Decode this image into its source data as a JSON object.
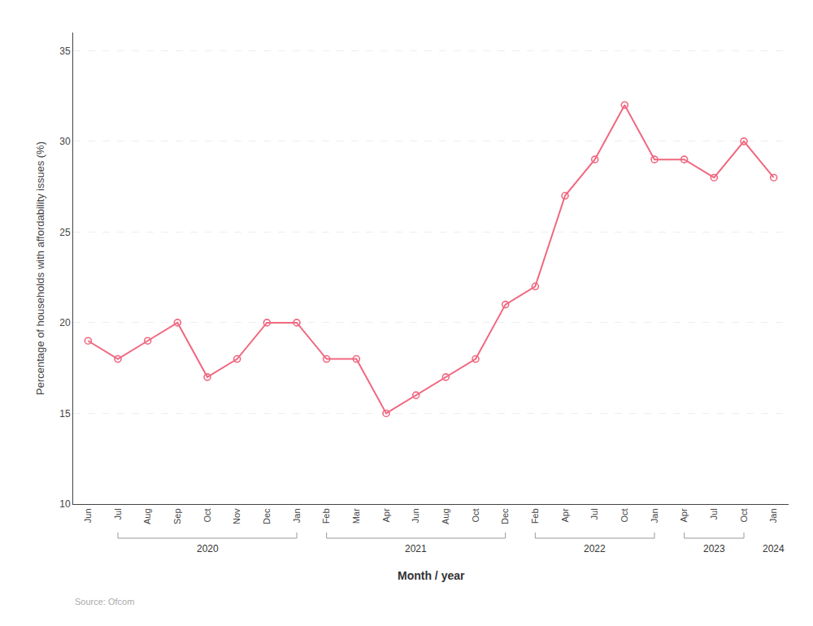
{
  "chart_data": {
    "type": "line",
    "xlabel": "Month / year",
    "ylabel": "Percentage of households with affordability issues (%)",
    "categories": [
      "Jun",
      "Jul",
      "Aug",
      "Sep",
      "Oct",
      "Nov",
      "Dec",
      "Jan",
      "Feb",
      "Mar",
      "Apr",
      "Jun",
      "Aug",
      "Oct",
      "Dec",
      "Feb",
      "Apr",
      "Jul",
      "Oct",
      "Jan",
      "Apr",
      "Jul",
      "Oct",
      "Jan"
    ],
    "values": [
      19.0,
      18.0,
      19.0,
      20.0,
      17.0,
      18.0,
      20.0,
      20.0,
      18.0,
      18.0,
      15.0,
      16.0,
      17.0,
      18.0,
      21.0,
      22.0,
      27.0,
      29.0,
      32.0,
      29.0,
      29.0,
      28.0,
      30.0,
      28.0
    ],
    "color": "#F06880",
    "marker": "open_circle",
    "ylim": [
      10,
      36
    ],
    "yticks": [
      10,
      15,
      20,
      25,
      30,
      35
    ],
    "grid": true,
    "annotations": [
      {
        "text": "2020",
        "from": 1,
        "to": 7
      },
      {
        "text": "2021",
        "from": 8,
        "to": 14
      },
      {
        "text": "2022",
        "from": 15,
        "to": 19
      },
      {
        "text": "2023",
        "from": 20,
        "to": 22
      },
      {
        "text": "2024",
        "from": 23,
        "to": 23
      }
    ],
    "source": "Source: Ofcom"
  }
}
